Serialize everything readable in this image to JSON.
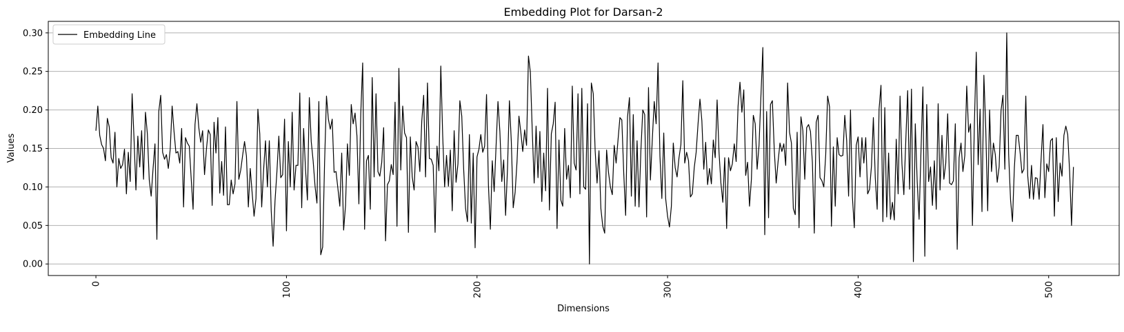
{
  "chart_data": {
    "type": "line",
    "title": "Embedding Plot for Darsan-2",
    "xlabel": "Dimensions",
    "ylabel": "Values",
    "xlim": [
      -25,
      537
    ],
    "ylim": [
      -0.015,
      0.315
    ],
    "xticks": [
      0,
      100,
      200,
      300,
      400,
      500
    ],
    "yticks": [
      0.0,
      0.05,
      0.1,
      0.15,
      0.2,
      0.25,
      0.3
    ],
    "xtick_labels": [
      "0",
      "100",
      "200",
      "300",
      "400",
      "500"
    ],
    "ytick_labels": [
      "0.00",
      "0.05",
      "0.10",
      "0.15",
      "0.20",
      "0.25",
      "0.30"
    ],
    "xtick_rotation": 90,
    "grid": "horizontal",
    "legend": "top-left",
    "line_color": "#000000",
    "series": [
      {
        "name": "Embedding Line",
        "values": [
          0.173,
          0.205,
          0.167,
          0.155,
          0.15,
          0.134,
          0.189,
          0.178,
          0.138,
          0.131,
          0.171,
          0.1,
          0.137,
          0.124,
          0.129,
          0.149,
          0.091,
          0.145,
          0.107,
          0.221,
          0.163,
          0.096,
          0.166,
          0.126,
          0.173,
          0.11,
          0.197,
          0.169,
          0.109,
          0.088,
          0.124,
          0.156,
          0.032,
          0.198,
          0.219,
          0.145,
          0.136,
          0.142,
          0.124,
          0.149,
          0.205,
          0.172,
          0.144,
          0.146,
          0.131,
          0.176,
          0.074,
          0.164,
          0.157,
          0.153,
          0.111,
          0.071,
          0.181,
          0.208,
          0.177,
          0.158,
          0.173,
          0.116,
          0.149,
          0.174,
          0.168,
          0.076,
          0.184,
          0.144,
          0.19,
          0.092,
          0.133,
          0.089,
          0.178,
          0.077,
          0.077,
          0.109,
          0.091,
          0.104,
          0.211,
          0.11,
          0.122,
          0.141,
          0.159,
          0.14,
          0.074,
          0.124,
          0.092,
          0.062,
          0.085,
          0.201,
          0.169,
          0.074,
          0.122,
          0.16,
          0.1,
          0.16,
          0.069,
          0.023,
          0.082,
          0.12,
          0.166,
          0.112,
          0.116,
          0.188,
          0.043,
          0.159,
          0.1,
          0.197,
          0.096,
          0.128,
          0.128,
          0.222,
          0.073,
          0.176,
          0.123,
          0.083,
          0.216,
          0.159,
          0.134,
          0.101,
          0.079,
          0.211,
          0.012,
          0.022,
          0.131,
          0.218,
          0.188,
          0.175,
          0.188,
          0.119,
          0.12,
          0.098,
          0.075,
          0.144,
          0.044,
          0.076,
          0.156,
          0.115,
          0.207,
          0.182,
          0.196,
          0.166,
          0.078,
          0.195,
          0.261,
          0.045,
          0.134,
          0.141,
          0.071,
          0.242,
          0.113,
          0.221,
          0.12,
          0.114,
          0.132,
          0.177,
          0.03,
          0.103,
          0.108,
          0.129,
          0.116,
          0.21,
          0.049,
          0.254,
          0.122,
          0.205,
          0.17,
          0.164,
          0.041,
          0.165,
          0.113,
          0.096,
          0.159,
          0.152,
          0.12,
          0.185,
          0.219,
          0.113,
          0.235,
          0.137,
          0.136,
          0.128,
          0.041,
          0.153,
          0.121,
          0.257,
          0.166,
          0.1,
          0.141,
          0.101,
          0.148,
          0.069,
          0.173,
          0.106,
          0.13,
          0.212,
          0.192,
          0.123,
          0.072,
          0.055,
          0.168,
          0.053,
          0.144,
          0.021,
          0.139,
          0.149,
          0.168,
          0.145,
          0.153,
          0.22,
          0.102,
          0.045,
          0.134,
          0.094,
          0.153,
          0.211,
          0.172,
          0.107,
          0.135,
          0.063,
          0.124,
          0.212,
          0.159,
          0.073,
          0.093,
          0.133,
          0.192,
          0.171,
          0.146,
          0.174,
          0.154,
          0.27,
          0.249,
          0.172,
          0.105,
          0.179,
          0.112,
          0.172,
          0.081,
          0.144,
          0.095,
          0.228,
          0.07,
          0.169,
          0.182,
          0.21,
          0.046,
          0.161,
          0.083,
          0.075,
          0.176,
          0.11,
          0.128,
          0.086,
          0.231,
          0.131,
          0.122,
          0.221,
          0.091,
          0.228,
          0.1,
          0.097,
          0.208,
          0.0,
          0.235,
          0.221,
          0.147,
          0.105,
          0.147,
          0.072,
          0.049,
          0.04,
          0.148,
          0.119,
          0.1,
          0.09,
          0.154,
          0.131,
          0.161,
          0.19,
          0.187,
          0.118,
          0.063,
          0.191,
          0.216,
          0.088,
          0.194,
          0.075,
          0.16,
          0.074,
          0.147,
          0.2,
          0.194,
          0.061,
          0.229,
          0.109,
          0.162,
          0.211,
          0.182,
          0.261,
          0.14,
          0.085,
          0.17,
          0.085,
          0.062,
          0.048,
          0.075,
          0.157,
          0.125,
          0.113,
          0.138,
          0.155,
          0.238,
          0.131,
          0.145,
          0.134,
          0.087,
          0.091,
          0.125,
          0.145,
          0.182,
          0.214,
          0.186,
          0.123,
          0.158,
          0.103,
          0.124,
          0.104,
          0.161,
          0.138,
          0.213,
          0.145,
          0.105,
          0.08,
          0.138,
          0.046,
          0.138,
          0.121,
          0.13,
          0.156,
          0.133,
          0.205,
          0.236,
          0.197,
          0.226,
          0.115,
          0.132,
          0.075,
          0.11,
          0.193,
          0.182,
          0.123,
          0.154,
          0.218,
          0.281,
          0.038,
          0.198,
          0.06,
          0.207,
          0.212,
          0.148,
          0.105,
          0.133,
          0.157,
          0.146,
          0.156,
          0.128,
          0.235,
          0.171,
          0.157,
          0.072,
          0.064,
          0.171,
          0.047,
          0.191,
          0.173,
          0.11,
          0.177,
          0.181,
          0.172,
          0.132,
          0.04,
          0.184,
          0.193,
          0.112,
          0.108,
          0.1,
          0.142,
          0.218,
          0.204,
          0.049,
          0.152,
          0.075,
          0.164,
          0.142,
          0.14,
          0.141,
          0.193,
          0.16,
          0.088,
          0.2,
          0.087,
          0.047,
          0.154,
          0.165,
          0.113,
          0.164,
          0.131,
          0.164,
          0.091,
          0.097,
          0.127,
          0.19,
          0.112,
          0.071,
          0.201,
          0.232,
          0.055,
          0.203,
          0.061,
          0.144,
          0.058,
          0.08,
          0.057,
          0.162,
          0.091,
          0.218,
          0.13,
          0.09,
          0.159,
          0.225,
          0.097,
          0.227,
          0.003,
          0.182,
          0.107,
          0.058,
          0.147,
          0.23,
          0.01,
          0.207,
          0.107,
          0.126,
          0.076,
          0.134,
          0.071,
          0.208,
          0.096,
          0.167,
          0.11,
          0.131,
          0.195,
          0.105,
          0.103,
          0.108,
          0.182,
          0.019,
          0.138,
          0.157,
          0.12,
          0.141,
          0.231,
          0.171,
          0.182,
          0.05,
          0.181,
          0.275,
          0.129,
          0.201,
          0.068,
          0.245,
          0.174,
          0.069,
          0.2,
          0.12,
          0.157,
          0.142,
          0.106,
          0.126,
          0.199,
          0.219,
          0.123,
          0.3,
          0.142,
          0.083,
          0.055,
          0.125,
          0.167,
          0.167,
          0.145,
          0.118,
          0.123,
          0.218,
          0.115,
          0.085,
          0.128,
          0.084,
          0.112,
          0.111,
          0.084,
          0.135,
          0.181,
          0.086,
          0.13,
          0.12,
          0.16,
          0.163,
          0.062,
          0.164,
          0.081,
          0.131,
          0.114,
          0.167,
          0.179,
          0.168,
          0.12,
          0.05,
          0.126
        ]
      }
    ]
  }
}
